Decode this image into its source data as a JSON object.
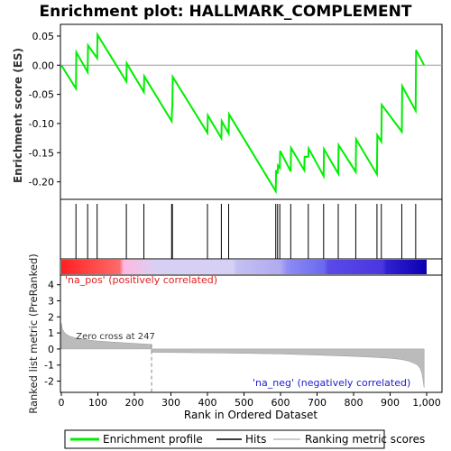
{
  "chart_data": {
    "type": "line",
    "title": "Enrichment plot: HALLMARK_COMPLEMENT",
    "es_panel": {
      "ylabel": "Enrichment score (ES)",
      "yticks": [
        0.05,
        0.0,
        -0.05,
        -0.1,
        -0.15,
        -0.2
      ],
      "ylim": [
        -0.23,
        0.07
      ],
      "series": [
        {
          "name": "Enrichment profile",
          "color": "#00ee00",
          "x": [
            0,
            40,
            41,
            72,
            73,
            98,
            99,
            178,
            179,
            226,
            227,
            302,
            303,
            304,
            305,
            400,
            401,
            438,
            439,
            458,
            459,
            587,
            588,
            592,
            593,
            598,
            599,
            628,
            629,
            665,
            666,
            676,
            677,
            718,
            719,
            758,
            759,
            806,
            807,
            864,
            865,
            876,
            877,
            932,
            933,
            970,
            971,
            993
          ],
          "y": [
            0.0,
            -0.04,
            0.022,
            -0.012,
            0.034,
            0.012,
            0.052,
            -0.028,
            0.003,
            -0.046,
            -0.019,
            -0.096,
            -0.077,
            -0.07,
            -0.02,
            -0.116,
            -0.086,
            -0.125,
            -0.096,
            -0.117,
            -0.084,
            -0.216,
            -0.18,
            -0.186,
            -0.172,
            -0.176,
            -0.147,
            -0.182,
            -0.142,
            -0.18,
            -0.157,
            -0.157,
            -0.143,
            -0.19,
            -0.144,
            -0.186,
            -0.137,
            -0.183,
            -0.127,
            -0.187,
            -0.12,
            -0.131,
            -0.068,
            -0.114,
            -0.036,
            -0.078,
            0.026,
            0.0
          ]
        }
      ]
    },
    "hits": [
      40,
      72,
      98,
      178,
      226,
      302,
      304,
      400,
      438,
      458,
      587,
      592,
      598,
      628,
      676,
      718,
      758,
      806,
      864,
      876,
      932,
      970
    ],
    "metric_panel": {
      "ylabel": "Ranked list metric (PreRanked)",
      "yticks": [
        4,
        3,
        2,
        1,
        0,
        -1,
        -2
      ],
      "ylim": [
        -2.7,
        4.6
      ],
      "xlim": [
        0,
        1000
      ],
      "xticks": [
        0,
        100,
        200,
        300,
        400,
        500,
        600,
        700,
        800,
        900,
        1000
      ],
      "xtick_labels": [
        "0",
        "100",
        "200",
        "300",
        "400",
        "500",
        "600",
        "700",
        "800",
        "900",
        "1,000"
      ],
      "xlabel": "Rank in Ordered Dataset",
      "metric_x": [
        0,
        3,
        8,
        15,
        25,
        40,
        60,
        90,
        130,
        180,
        230,
        246,
        247,
        300,
        400,
        500,
        600,
        700,
        800,
        860,
        900,
        930,
        950,
        965,
        975,
        982,
        987,
        990,
        993
      ],
      "metric_y": [
        1.6,
        1.25,
        1.05,
        0.9,
        0.78,
        0.68,
        0.6,
        0.52,
        0.45,
        0.38,
        0.31,
        0.28,
        -0.2,
        -0.22,
        -0.24,
        -0.27,
        -0.31,
        -0.38,
        -0.46,
        -0.52,
        -0.58,
        -0.65,
        -0.75,
        -0.88,
        -1.0,
        -1.2,
        -1.5,
        -1.9,
        -2.4
      ],
      "zero_cross_label": "Zero cross at 247",
      "zero_cross_rank": 247,
      "pos_label": "'na_pos' (positively correlated)",
      "neg_label": "'na_neg' (negatively correlated)"
    },
    "legend": [
      "Enrichment profile",
      "Hits",
      "Ranking metric scores"
    ]
  },
  "colors": {
    "profile": "#00ee00",
    "pos_text": "#e02020",
    "neg_text": "#2020d0",
    "metric_fill": "#bbbbbb",
    "zero_line": "#888888"
  }
}
